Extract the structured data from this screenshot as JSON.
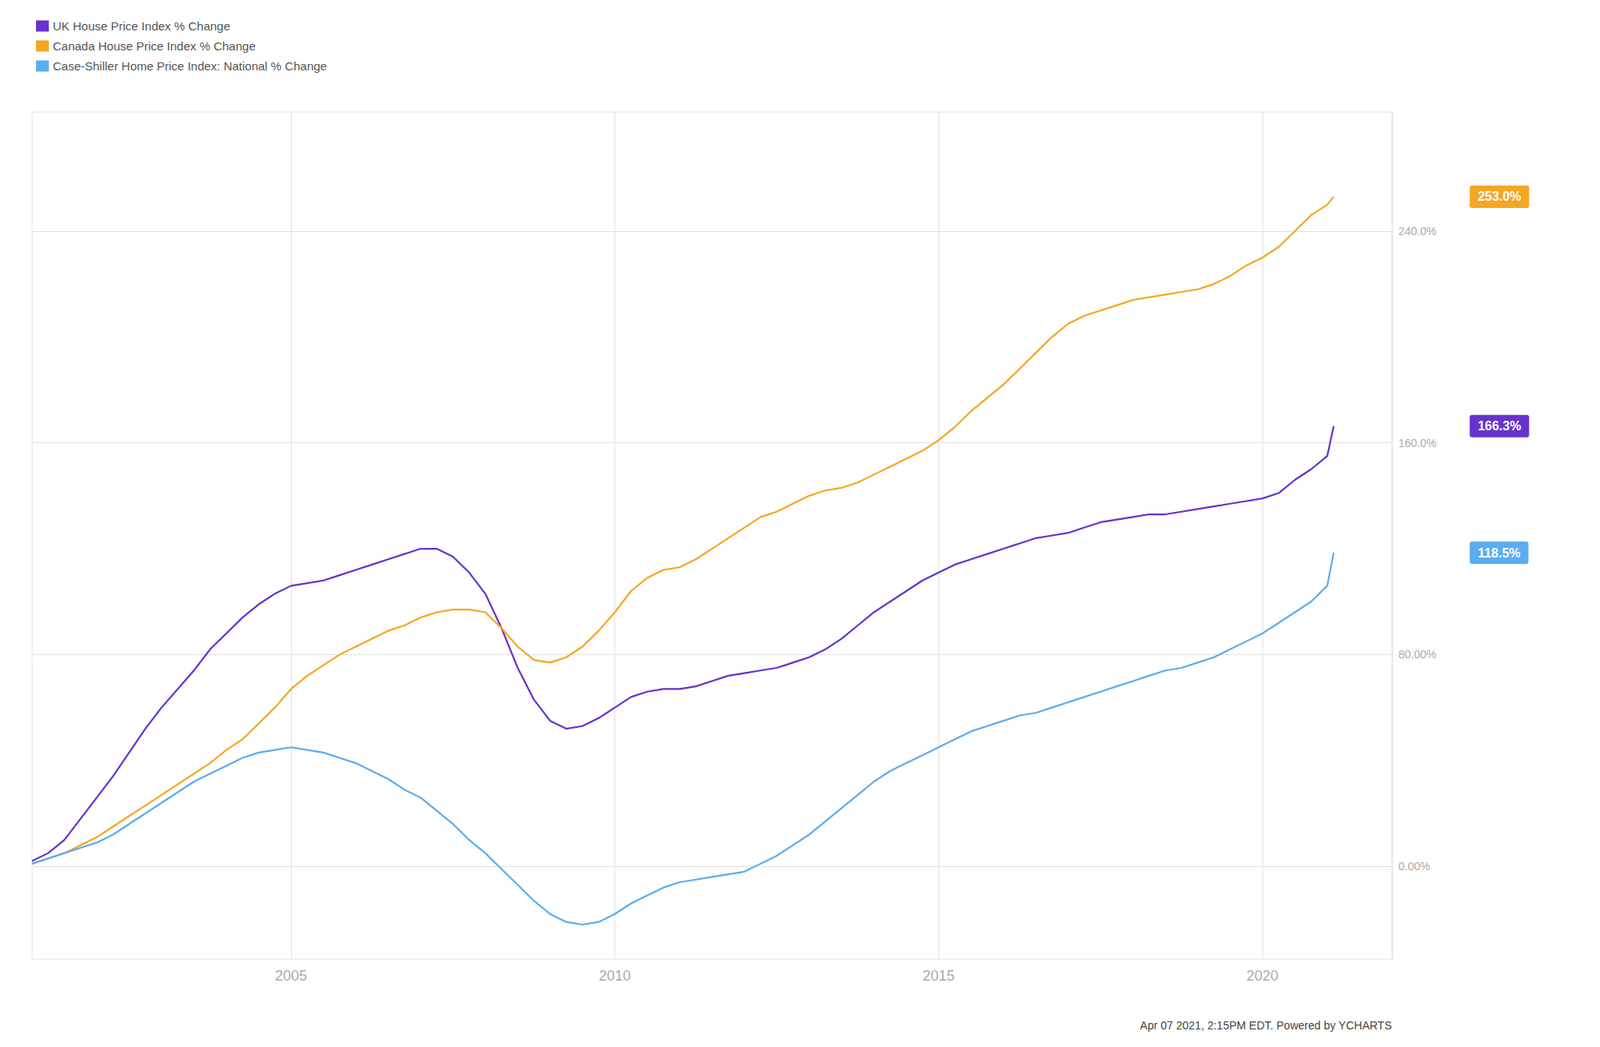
{
  "chart_data": {
    "type": "line",
    "x": [
      2001.0,
      2001.25,
      2001.5,
      2001.75,
      2002.0,
      2002.25,
      2002.5,
      2002.75,
      2003.0,
      2003.25,
      2003.5,
      2003.75,
      2004.0,
      2004.25,
      2004.5,
      2004.75,
      2005.0,
      2005.25,
      2005.5,
      2005.75,
      2006.0,
      2006.25,
      2006.5,
      2006.75,
      2007.0,
      2007.25,
      2007.5,
      2007.75,
      2008.0,
      2008.25,
      2008.5,
      2008.75,
      2009.0,
      2009.25,
      2009.5,
      2009.75,
      2010.0,
      2010.25,
      2010.5,
      2010.75,
      2011.0,
      2011.25,
      2011.5,
      2011.75,
      2012.0,
      2012.25,
      2012.5,
      2012.75,
      2013.0,
      2013.25,
      2013.5,
      2013.75,
      2014.0,
      2014.25,
      2014.5,
      2014.75,
      2015.0,
      2015.25,
      2015.5,
      2015.75,
      2016.0,
      2016.25,
      2016.5,
      2016.75,
      2017.0,
      2017.25,
      2017.5,
      2017.75,
      2018.0,
      2018.25,
      2018.5,
      2018.75,
      2019.0,
      2019.25,
      2019.5,
      2019.75,
      2020.0,
      2020.25,
      2020.5,
      2020.75,
      2021.0,
      2021.1
    ],
    "series": [
      {
        "name": "UK House Price Index % Change",
        "color": "#6633cc",
        "values": [
          2,
          5,
          10,
          18,
          26,
          34,
          43,
          52,
          60,
          67,
          74,
          82,
          88,
          94,
          99,
          103,
          106,
          107,
          108,
          110,
          112,
          114,
          116,
          118,
          120,
          120,
          117,
          111,
          103,
          90,
          75,
          63,
          55,
          52,
          53,
          56,
          60,
          64,
          66,
          67,
          67,
          68,
          70,
          72,
          73,
          74,
          75,
          77,
          79,
          82,
          86,
          91,
          96,
          100,
          104,
          108,
          111,
          114,
          116,
          118,
          120,
          122,
          124,
          125,
          126,
          128,
          130,
          131,
          132,
          133,
          133,
          134,
          135,
          136,
          137,
          138,
          139,
          141,
          146,
          150,
          155,
          166.3
        ]
      },
      {
        "name": "Canada House Price Index % Change",
        "color": "#f5a623",
        "values": [
          1,
          3,
          5,
          8,
          11,
          15,
          19,
          23,
          27,
          31,
          35,
          39,
          44,
          48,
          54,
          60,
          67,
          72,
          76,
          80,
          83,
          86,
          89,
          91,
          94,
          96,
          97,
          97,
          96,
          90,
          83,
          78,
          77,
          79,
          83,
          89,
          96,
          104,
          109,
          112,
          113,
          116,
          120,
          124,
          128,
          132,
          134,
          137,
          140,
          142,
          143,
          145,
          148,
          151,
          154,
          157,
          161,
          166,
          172,
          177,
          182,
          188,
          194,
          200,
          205,
          208,
          210,
          212,
          214,
          215,
          216,
          217,
          218,
          220,
          223,
          227,
          230,
          234,
          240,
          246,
          250,
          253.0
        ]
      },
      {
        "name": "Case-Shiller Home Price Index: National % Change",
        "color": "#5badf0",
        "values": [
          1,
          3,
          5,
          7,
          9,
          12,
          16,
          20,
          24,
          28,
          32,
          35,
          38,
          41,
          43,
          44,
          45,
          44,
          43,
          41,
          39,
          36,
          33,
          29,
          26,
          21,
          16,
          10,
          5,
          -1,
          -7,
          -13,
          -18,
          -21,
          -22,
          -21,
          -18,
          -14,
          -11,
          -8,
          -6,
          -5,
          -4,
          -3,
          -2,
          1,
          4,
          8,
          12,
          17,
          22,
          27,
          32,
          36,
          39,
          42,
          45,
          48,
          51,
          53,
          55,
          57,
          58,
          60,
          62,
          64,
          66,
          68,
          70,
          72,
          74,
          75,
          77,
          79,
          82,
          85,
          88,
          92,
          96,
          100,
          106,
          118.5
        ]
      }
    ],
    "xlim": [
      2001.0,
      2022.0
    ],
    "xticks": [
      2005,
      2010,
      2015,
      2020
    ],
    "ylim": [
      -35.0,
      285.0
    ],
    "yticks": [
      {
        "value": 0,
        "label": "0.00%"
      },
      {
        "value": 80,
        "label": "80.00%"
      },
      {
        "value": 160,
        "label": "160.0%"
      },
      {
        "value": 240,
        "label": "240.0%"
      }
    ],
    "grid": true,
    "legend": "upper left",
    "annotations": [
      {
        "text": "253.0%",
        "x": 2021.1,
        "y": 253.0
      },
      {
        "text": "166.3%",
        "x": 2021.1,
        "y": 166.3
      },
      {
        "text": "118.5%",
        "x": 2021.1,
        "y": 118.5
      },
      {
        "text": "Apr 07 2021, 2:15PM EDT. Powered by YCHARTS"
      }
    ]
  }
}
